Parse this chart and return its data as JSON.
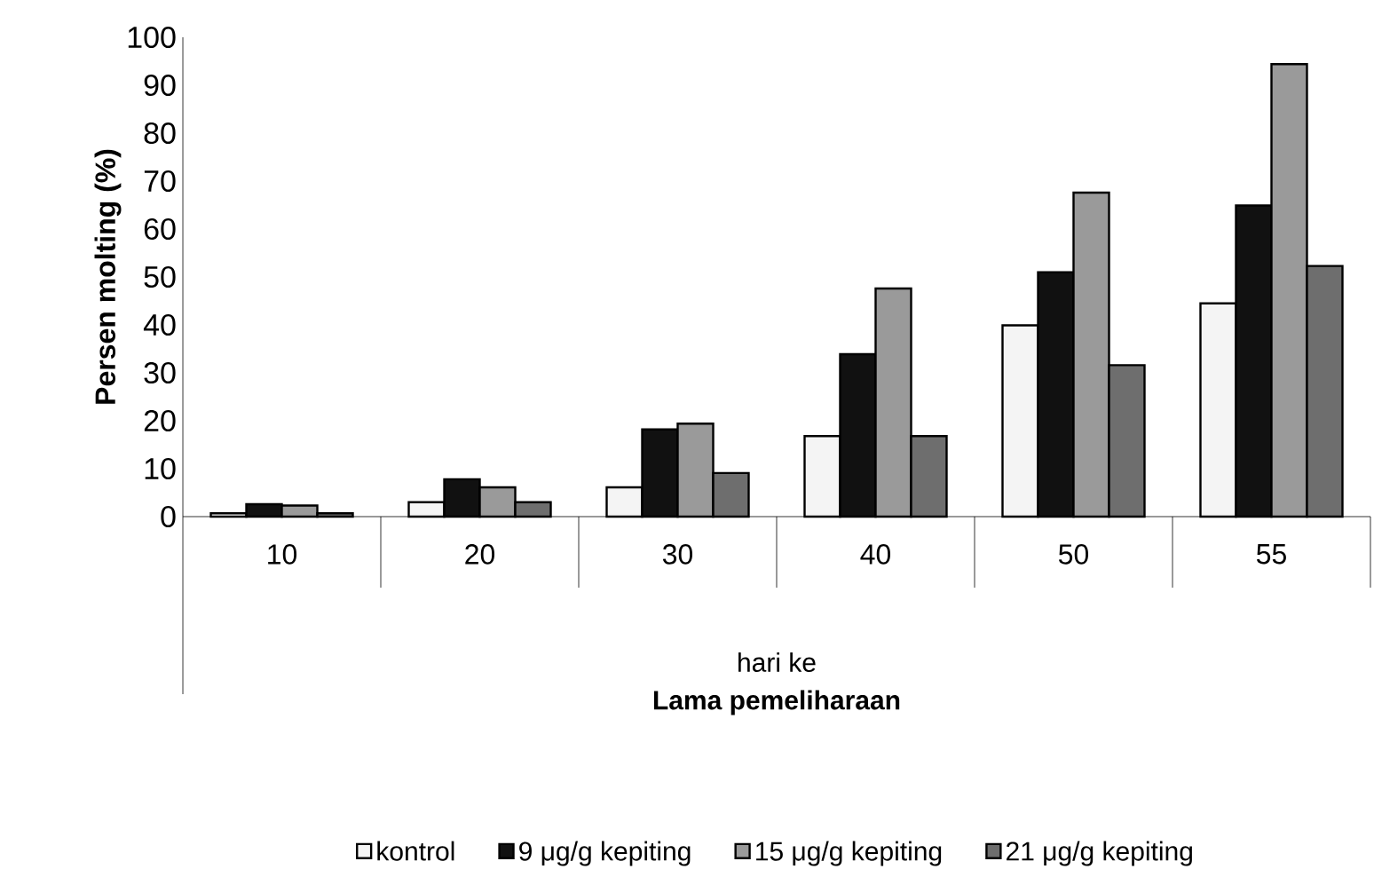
{
  "chart_data": {
    "type": "bar",
    "xlabel": "Lama pemeliharaan",
    "ylabel": "Persen molting (%)",
    "annotations": [
      "hari ke"
    ],
    "categories": [
      "10",
      "20",
      "30",
      "40",
      "50",
      "55"
    ],
    "series": [
      {
        "name": "kontrol",
        "color": "#f4f4f4",
        "values": [
          0.7,
          3,
          6.1,
          16.8,
          39.9,
          44.5
        ]
      },
      {
        "name": "9 μg/g kepiting",
        "color": "#111111",
        "values": [
          2.6,
          7.8,
          18.2,
          33.9,
          51,
          64.9
        ]
      },
      {
        "name": "15 μg/g kepiting",
        "color": "#9a9a9a",
        "values": [
          2.3,
          6.1,
          19.4,
          47.6,
          67.6,
          94.4
        ]
      },
      {
        "name": "21 μg/g kepiting",
        "color": "#6e6e6e",
        "values": [
          0.7,
          3,
          9.1,
          16.8,
          31.6,
          52.3
        ]
      }
    ],
    "ylim": [
      0,
      100
    ],
    "yticks": [
      0,
      10,
      20,
      30,
      40,
      50,
      60,
      70,
      80,
      90,
      100
    ],
    "grid": false,
    "legend": "bottom"
  }
}
